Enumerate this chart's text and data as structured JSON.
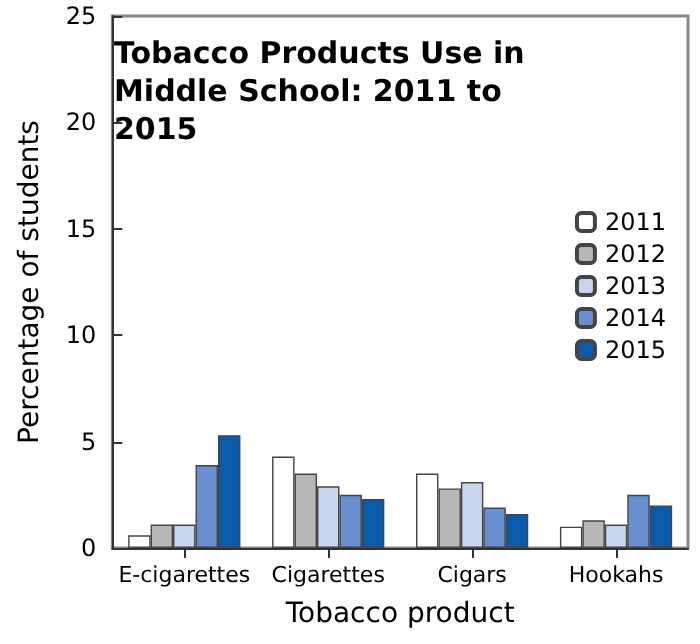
{
  "chart_data": {
    "type": "bar",
    "title": "Tobacco Products Use in Middle School: 2011 to 2015",
    "xlabel": "Tobacco product",
    "ylabel": "Percentage of students",
    "categories": [
      "E-cigarettes",
      "Cigarettes",
      "Cigars",
      "Hookahs"
    ],
    "series": [
      {
        "name": "2011",
        "color": "#ffffff",
        "values": [
          0.6,
          4.3,
          3.5,
          1.0
        ]
      },
      {
        "name": "2012",
        "color": "#b8b8b8",
        "values": [
          1.1,
          3.5,
          2.8,
          1.3
        ]
      },
      {
        "name": "2013",
        "color": "#c9d5ee",
        "values": [
          1.1,
          2.9,
          3.1,
          1.1
        ]
      },
      {
        "name": "2014",
        "color": "#6a8fd0",
        "values": [
          3.9,
          2.5,
          1.9,
          2.5
        ]
      },
      {
        "name": "2015",
        "color": "#0a5bab",
        "values": [
          5.3,
          2.3,
          1.6,
          2.0
        ]
      }
    ],
    "ylim": [
      0,
      25
    ],
    "yticks": [
      0,
      5,
      10,
      15,
      20,
      25
    ],
    "grid": false,
    "legend": "right"
  }
}
